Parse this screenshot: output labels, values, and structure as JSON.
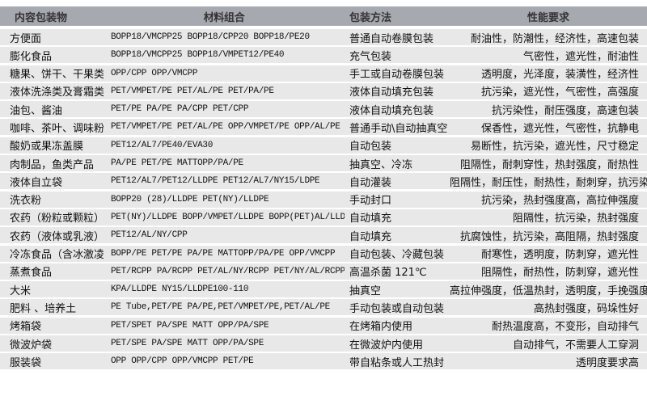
{
  "headers": [
    "内容包装物",
    "材料组合",
    "包装方法",
    "性能要求"
  ],
  "rows": [
    [
      "方便面",
      "BOPP18/VMCPP25  BOPP18/CPP20  BOPP18/PE20",
      "普通自动卷膜包装",
      "耐油性，防潮性，经济性，高速包装"
    ],
    [
      "膨化食品",
      "BOPP18/VMCPP25  BOPP18/VMPET12/PE40",
      "充气包装",
      "气密性，遮光性，耐油性"
    ],
    [
      "糖果、饼干、干果类",
      "OPP/CPP OPP/VMCPP",
      "手工或自动卷膜包装",
      "透明度，光泽度，装潢性，经济性"
    ],
    [
      "液体洗涤类及膏霜类",
      "PET/VMPET/PE PET/AL/PE  PET/PA/PE",
      "液体自动填充包装",
      "抗污染，遮光性，气密性，高强度"
    ],
    [
      "油包、酱油",
      "PET/PE  PA/PE PA/CPP PET/CPP",
      "液体自动填充包装",
      "抗污染性，耐压强度，高速包装"
    ],
    [
      "咖啡、茶叶、调味粉等",
      "PET/VMPET/PE PET/AL/PE OPP/VMPET/PE OPP/AL/PE",
      "普通手动\\自动抽真空",
      "保香性，遮光性，气密性，抗静电"
    ],
    [
      "酸奶或果冻盖膜",
      "PET12/AL7/PE40/EVA30",
      "自动包装",
      "易断性，抗污染，遮光性，尺寸稳定"
    ],
    [
      "肉制品，鱼类产品",
      "PA/PE PET/PE MATTOPP/PA/PE",
      "抽真空、冷冻",
      "阻隔性，耐刺穿性，热封强度，耐热性"
    ],
    [
      "液体自立袋",
      "PET12/AL7/PET12/LLDPE PET12/AL7/NY15/LDPE",
      "自动灌装",
      "阻隔性，耐压性，耐热性，耐刺穿，抗污染"
    ],
    [
      "洗衣粉",
      "BOPP20 (28)/LLDPE PET(NY)/LLDPE",
      "手动封口",
      "抗污染，热封强度高，高拉伸强度"
    ],
    [
      "农药（粉粒或颗粒）",
      "PET(NY)/LLDPE BOPP/VMPET/LLDPE BOPP(PET)AL/LLDPE",
      "自动填充",
      "阻隔性，抗污染，热封强度"
    ],
    [
      "农药（液体或乳液）",
      "PET12/AL/NY/CPP",
      "自动填充",
      "抗腐蚀性，抗污染，高阻隔，热封强度"
    ],
    [
      "冷冻食品（含冰激凌）",
      "BOPP/PE PET/PE PA/PE MATTOPP/PA/PE OPP/VMCPP",
      "自动包装、冷藏包装",
      "耐寒性，透明度，防刺穿，遮光性"
    ],
    [
      "蒸煮食品",
      "PET/RCPP PA/RCPP PET/AL/NY/RCPP PET/NY/AL/RCPP",
      "高温杀菌 121℃",
      "阻隔性，耐热性，防刺穿，遮光性"
    ],
    [
      "大米",
      "KPA/LLDPE NY15/LLDPE100-110",
      "抽真空",
      "高拉伸强度，低温热封，透明度，手挽强度高"
    ],
    [
      "肥料 、培养土",
      "PE Tube,PET/PE  PA/PE,PET/VMPET/PE,PET/AL/PE",
      "手动包装或自动包装",
      "高热封强度，码垛性好"
    ],
    [
      "烤箱袋",
      "PET/SPET PA/SPE MATT OPP/PA/SPE",
      "在烤箱内使用",
      "耐热温度高，不变形，自动排气"
    ],
    [
      "微波炉袋",
      "PET/SPE PA/SPE MATT OPP/PA/SPE",
      "在微波炉内使用",
      "自动排气，不需要人工穿洞"
    ],
    [
      "服装袋",
      "OPP  OPP/CPP OPP/VMCPP PET/PE",
      "带自粘条或人工热封",
      "透明度要求高"
    ]
  ],
  "colors": {
    "header_bg": "#a6a9b0",
    "row_bg": "#e8e8e8"
  }
}
